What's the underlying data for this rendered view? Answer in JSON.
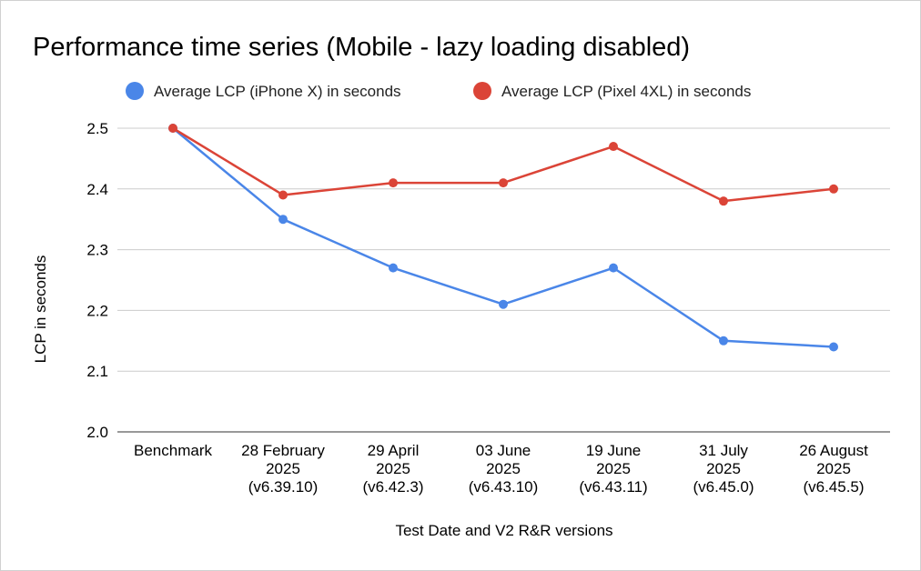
{
  "chart_data": {
    "type": "line",
    "title": "Performance time series (Mobile - lazy loading disabled)",
    "xlabel": "Test Date and V2 R&R versions",
    "ylabel": "LCP in seconds",
    "ylim": [
      2.0,
      2.5
    ],
    "yticks": [
      "2.0",
      "2.1",
      "2.2",
      "2.3",
      "2.4",
      "2.5"
    ],
    "grid": true,
    "legend_position": "top",
    "categories": [
      [
        "Benchmark"
      ],
      [
        "28 February",
        "2025",
        "(v6.39.10)"
      ],
      [
        "29 April",
        "2025",
        "(v6.42.3)"
      ],
      [
        "03 June",
        "2025",
        "(v6.43.10)"
      ],
      [
        "19 June",
        "2025",
        "(v6.43.11)"
      ],
      [
        "31 July",
        "2025",
        "(v6.45.0)"
      ],
      [
        "26 August",
        "2025",
        "(v6.45.5)"
      ]
    ],
    "series": [
      {
        "name": "Average LCP (iPhone X) in seconds",
        "color": "#4a86e8",
        "values": [
          2.5,
          2.35,
          2.27,
          2.21,
          2.27,
          2.15,
          2.14
        ]
      },
      {
        "name": "Average LCP (Pixel 4XL) in seconds",
        "color": "#db4437",
        "values": [
          2.5,
          2.39,
          2.41,
          2.41,
          2.47,
          2.38,
          2.4
        ]
      }
    ]
  }
}
